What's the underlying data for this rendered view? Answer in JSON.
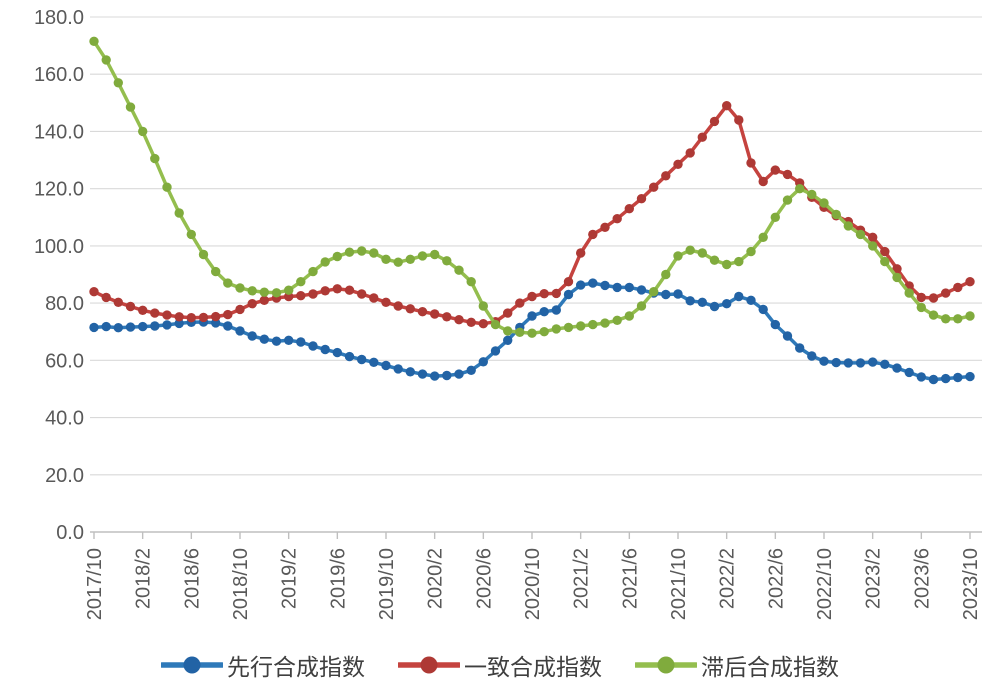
{
  "page": {
    "background": "#FFFFFF"
  },
  "chart_data": {
    "type": "line",
    "title": "",
    "xlabel": "",
    "ylabel": "",
    "ylim": [
      0,
      180
    ],
    "ytick_step": 20,
    "ytick_decimals": 1,
    "xtick_every": 4,
    "grid": true,
    "legend_position": "bottom",
    "grid_color": "#D9D9D9",
    "axis_line_color": "#BFBFBF",
    "axis_label_color": "#595959",
    "categories": [
      "2017/10",
      "2017/11",
      "2017/12",
      "2018/1",
      "2018/2",
      "2018/3",
      "2018/4",
      "2018/5",
      "2018/6",
      "2018/7",
      "2018/8",
      "2018/9",
      "2018/10",
      "2018/11",
      "2018/12",
      "2019/1",
      "2019/2",
      "2019/3",
      "2019/4",
      "2019/5",
      "2019/6",
      "2019/7",
      "2019/8",
      "2019/9",
      "2019/10",
      "2019/11",
      "2019/12",
      "2020/1",
      "2020/2",
      "2020/3",
      "2020/4",
      "2020/5",
      "2020/6",
      "2020/7",
      "2020/8",
      "2020/9",
      "2020/10",
      "2020/11",
      "2020/12",
      "2021/1",
      "2021/2",
      "2021/3",
      "2021/4",
      "2021/5",
      "2021/6",
      "2021/7",
      "2021/8",
      "2021/9",
      "2021/10",
      "2021/11",
      "2021/12",
      "2022/1",
      "2022/2",
      "2022/3",
      "2022/4",
      "2022/5",
      "2022/6",
      "2022/7",
      "2022/8",
      "2022/9",
      "2022/10",
      "2022/11",
      "2022/12",
      "2023/1",
      "2023/2",
      "2023/3",
      "2023/4",
      "2023/5",
      "2023/6",
      "2023/7",
      "2023/8",
      "2023/9",
      "2023/10"
    ],
    "series": [
      {
        "id": "leading",
        "name": "先行合成指数",
        "color": "#2E79B9",
        "marker_color": "#2263A5",
        "values": [
          71.5,
          71.8,
          71.4,
          71.6,
          71.8,
          72.0,
          72.4,
          72.9,
          73.3,
          73.4,
          73.1,
          72.0,
          70.3,
          68.5,
          67.4,
          66.7,
          67.0,
          66.4,
          65.0,
          63.8,
          62.7,
          61.3,
          60.3,
          59.3,
          58.2,
          57.0,
          56.0,
          55.2,
          54.5,
          54.7,
          55.2,
          56.5,
          59.5,
          63.3,
          67.0,
          71.5,
          75.5,
          77.0,
          77.6,
          83.0,
          86.3,
          87.0,
          86.2,
          85.5,
          85.5,
          84.6,
          83.5,
          83.0,
          83.2,
          80.8,
          80.3,
          78.8,
          79.8,
          82.3,
          81.0,
          77.8,
          72.5,
          68.5,
          64.3,
          61.5,
          59.7,
          59.2,
          59.1,
          59.1,
          59.4,
          58.6,
          57.3,
          55.8,
          54.2,
          53.3,
          53.6,
          54.0,
          54.3
        ]
      },
      {
        "id": "coincident",
        "name": "一致合成指数",
        "color": "#C5433F",
        "marker_color": "#AE3935",
        "values": [
          84.0,
          82.0,
          80.3,
          78.8,
          77.5,
          76.5,
          75.8,
          75.2,
          74.9,
          75.0,
          75.3,
          76.0,
          77.8,
          79.8,
          81.0,
          81.8,
          82.3,
          82.6,
          83.2,
          84.3,
          85.0,
          84.5,
          83.2,
          81.8,
          80.3,
          79.0,
          78.0,
          77.0,
          76.2,
          75.2,
          74.2,
          73.3,
          72.8,
          73.5,
          76.5,
          80.0,
          82.3,
          83.3,
          83.4,
          87.5,
          97.5,
          104.0,
          106.5,
          109.5,
          113.0,
          116.5,
          120.5,
          124.5,
          128.5,
          132.5,
          138.0,
          143.5,
          149.0,
          144.0,
          129.0,
          122.5,
          126.5,
          125.0,
          122.0,
          117.0,
          113.5,
          110.5,
          108.5,
          105.5,
          103.0,
          98.0,
          92.0,
          86.0,
          82.0,
          81.8,
          83.5,
          85.5,
          87.5
        ]
      },
      {
        "id": "lagging",
        "name": "滞后合成指数",
        "color": "#94BE4E",
        "marker_color": "#80AB3D",
        "values": [
          171.5,
          165.0,
          157.0,
          148.5,
          140.0,
          130.5,
          120.5,
          111.5,
          104.0,
          97.0,
          91.0,
          87.0,
          85.3,
          84.3,
          83.8,
          83.6,
          84.5,
          87.5,
          91.0,
          94.4,
          96.3,
          97.8,
          98.2,
          97.5,
          95.3,
          94.3,
          95.3,
          96.5,
          97.0,
          94.8,
          91.5,
          87.5,
          79.0,
          72.5,
          70.3,
          69.8,
          69.5,
          70.0,
          71.0,
          71.5,
          72.0,
          72.5,
          73.0,
          74.0,
          75.5,
          79.0,
          84.0,
          90.0,
          96.5,
          98.5,
          97.5,
          95.0,
          93.5,
          94.5,
          98.0,
          103.0,
          110.0,
          116.0,
          120.0,
          118.0,
          115.0,
          111.0,
          107.0,
          104.0,
          100.0,
          94.5,
          89.0,
          83.5,
          78.5,
          75.8,
          74.5,
          74.5,
          75.5
        ]
      }
    ]
  }
}
